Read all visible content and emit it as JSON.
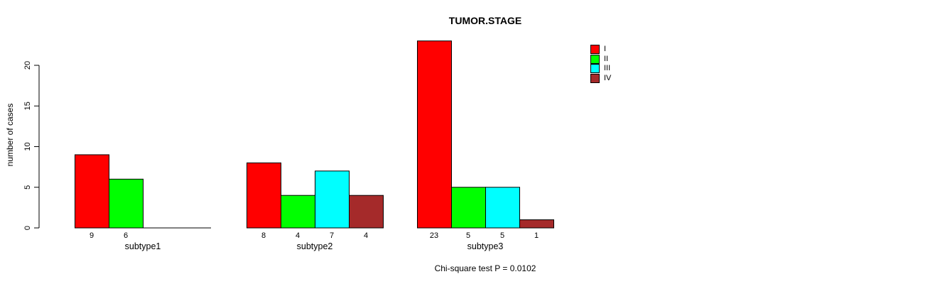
{
  "chart_data": {
    "type": "bar",
    "title": "TUMOR.STAGE",
    "xlabel": "",
    "ylabel": "number of cases",
    "annotation": "Chi-square test P = 0.0102",
    "yticks": [
      0,
      5,
      10,
      15,
      20
    ],
    "ylim": [
      0,
      23
    ],
    "grid": false,
    "legend_position": "top-right",
    "categories": [
      "subtype1",
      "subtype2",
      "subtype3"
    ],
    "series": [
      {
        "name": "I",
        "color": "#ff0000",
        "values": [
          9,
          8,
          23
        ]
      },
      {
        "name": "II",
        "color": "#00ff00",
        "values": [
          6,
          4,
          5
        ]
      },
      {
        "name": "III",
        "color": "#00ffff",
        "values": [
          0,
          7,
          5
        ]
      },
      {
        "name": "IV",
        "color": "#a52a2a",
        "values": [
          0,
          4,
          1
        ]
      }
    ],
    "bar_value_labels": {
      "subtype1": [
        "9",
        "6"
      ],
      "subtype2": [
        "8",
        "4",
        "7",
        "4"
      ],
      "subtype3": [
        "23",
        "5",
        "5",
        "1"
      ]
    },
    "colors": {
      "axis": "#000000",
      "bar_border": "#000000",
      "text": "#000000",
      "background": "#ffffff"
    }
  }
}
